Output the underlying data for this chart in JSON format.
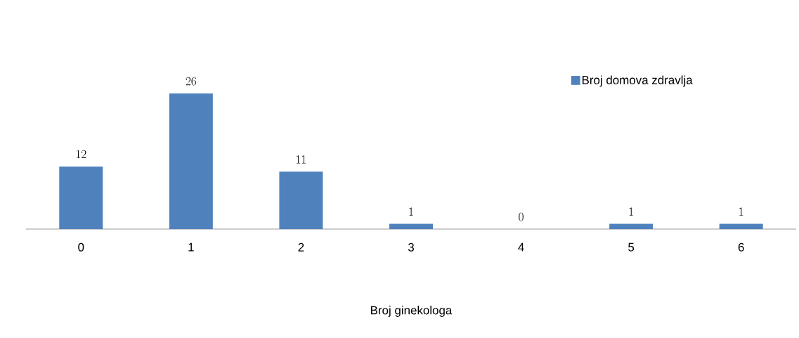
{
  "chart_data": {
    "type": "bar",
    "xlabel": "Broj ginekologa",
    "categories": [
      "0",
      "1",
      "2",
      "3",
      "4",
      "5",
      "6"
    ],
    "series": [
      {
        "name": "Broj domova zdravlja",
        "color": "#4f81bd",
        "values": [
          12,
          26,
          11,
          1,
          0,
          1,
          1
        ]
      }
    ],
    "data_labels": true,
    "legend": "top right",
    "grid": false
  }
}
